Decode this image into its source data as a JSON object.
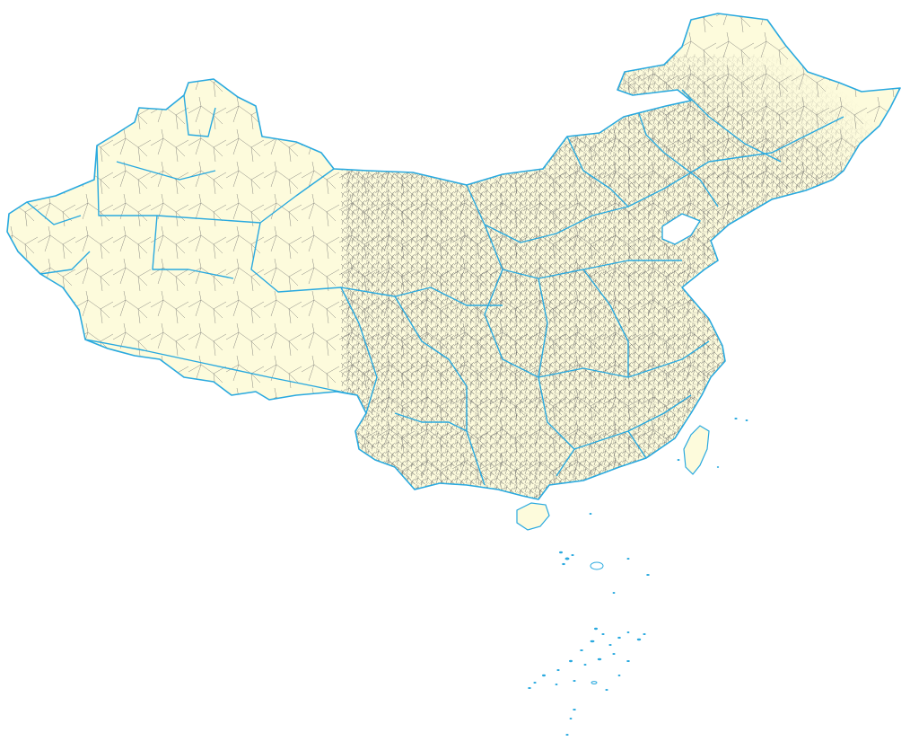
{
  "map": {
    "colors": {
      "land_fill": "#fdfbdc",
      "province_border": "#29a9df",
      "county_border": "#6b6b6b",
      "background": "#ffffff"
    },
    "layers": [
      "provinces",
      "counties",
      "islands"
    ]
  }
}
